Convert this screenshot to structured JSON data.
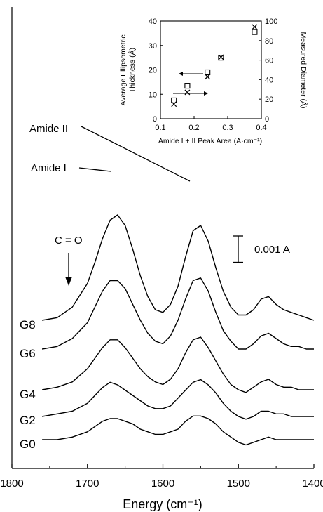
{
  "chart_data": [
    {
      "type": "line",
      "title": "",
      "xlabel": "Energy (cm⁻¹)",
      "ylabel": "",
      "xlim": [
        1800,
        1400
      ],
      "x_reversed": true,
      "x_ticks": [
        "1800",
        "1700",
        "1600",
        "1500",
        "1400"
      ],
      "x_tick_values": [
        1800,
        1700,
        1600,
        1500,
        1400
      ],
      "grid": false,
      "y_units": "absorbance (A)",
      "series": [
        {
          "name": "G0",
          "x": [
            1760,
            1740,
            1720,
            1700,
            1690,
            1680,
            1670,
            1660,
            1650,
            1640,
            1630,
            1620,
            1610,
            1600,
            1590,
            1580,
            1570,
            1560,
            1550,
            1540,
            1530,
            1520,
            1510,
            1500,
            1490,
            1480,
            1470,
            1460,
            1450,
            1440,
            1430,
            1420,
            1410,
            1400
          ],
          "y": [
            0.0,
            0.0,
            0.0001,
            0.0003,
            0.0005,
            0.0007,
            0.0008,
            0.0008,
            0.0007,
            0.0006,
            0.0004,
            0.0003,
            0.0002,
            0.0002,
            0.0003,
            0.0004,
            0.0007,
            0.0009,
            0.0009,
            0.0008,
            0.0006,
            0.0003,
            0.0001,
            -0.0001,
            -0.0002,
            -0.0001,
            0.0,
            0.0001,
            0.0,
            0.0,
            0.0,
            0.0,
            0.0,
            0.0
          ]
        },
        {
          "name": "G2",
          "x": [
            1760,
            1740,
            1720,
            1700,
            1690,
            1680,
            1670,
            1660,
            1650,
            1640,
            1630,
            1620,
            1610,
            1600,
            1590,
            1580,
            1570,
            1560,
            1550,
            1540,
            1530,
            1520,
            1510,
            1500,
            1490,
            1480,
            1470,
            1460,
            1450,
            1440,
            1430,
            1420,
            1410,
            1400
          ],
          "y": [
            0.0,
            0.0001,
            0.0002,
            0.0005,
            0.0008,
            0.0011,
            0.0013,
            0.0012,
            0.001,
            0.0008,
            0.0006,
            0.0004,
            0.0003,
            0.0003,
            0.0004,
            0.0007,
            0.001,
            0.0013,
            0.0014,
            0.0012,
            0.0009,
            0.0005,
            0.0002,
            0.0,
            -0.0001,
            0.0,
            0.0002,
            0.0002,
            0.0001,
            0.0001,
            0.0,
            0.0,
            0.0,
            0.0
          ]
        },
        {
          "name": "G4",
          "x": [
            1760,
            1740,
            1720,
            1700,
            1690,
            1680,
            1670,
            1660,
            1650,
            1640,
            1630,
            1620,
            1610,
            1600,
            1590,
            1580,
            1570,
            1560,
            1550,
            1540,
            1530,
            1520,
            1510,
            1500,
            1490,
            1480,
            1470,
            1460,
            1450,
            1440,
            1430,
            1420,
            1410,
            1400
          ],
          "y": [
            0.0,
            0.0001,
            0.0003,
            0.0008,
            0.0012,
            0.0016,
            0.0019,
            0.0019,
            0.0016,
            0.0012,
            0.0008,
            0.0005,
            0.0003,
            0.0002,
            0.0004,
            0.0008,
            0.0014,
            0.0019,
            0.002,
            0.0016,
            0.0011,
            0.0006,
            0.0002,
            0.0,
            -0.0001,
            0.0001,
            0.0003,
            0.0004,
            0.0002,
            0.0001,
            0.0001,
            0.0,
            0.0,
            0.0
          ]
        },
        {
          "name": "G6",
          "x": [
            1760,
            1740,
            1720,
            1700,
            1690,
            1680,
            1670,
            1660,
            1650,
            1640,
            1630,
            1620,
            1610,
            1600,
            1590,
            1580,
            1570,
            1560,
            1550,
            1540,
            1530,
            1520,
            1510,
            1500,
            1490,
            1480,
            1470,
            1460,
            1450,
            1440,
            1430,
            1420,
            1410,
            1400
          ],
          "y": [
            0.0,
            0.0001,
            0.0004,
            0.001,
            0.0016,
            0.0022,
            0.0026,
            0.0026,
            0.0023,
            0.0017,
            0.0011,
            0.0006,
            0.0003,
            0.0002,
            0.0005,
            0.0011,
            0.0019,
            0.0026,
            0.0027,
            0.0022,
            0.0014,
            0.0007,
            0.0003,
            0.0,
            0.0,
            0.0002,
            0.0005,
            0.0006,
            0.0004,
            0.0002,
            0.0001,
            0.0001,
            0.0,
            0.0
          ]
        },
        {
          "name": "G8",
          "x": [
            1760,
            1740,
            1720,
            1700,
            1690,
            1680,
            1670,
            1660,
            1650,
            1640,
            1630,
            1620,
            1610,
            1600,
            1590,
            1580,
            1570,
            1560,
            1550,
            1540,
            1530,
            1520,
            1510,
            1500,
            1490,
            1480,
            1470,
            1460,
            1450,
            1440,
            1430,
            1420,
            1410,
            1400
          ],
          "y": [
            0.0,
            0.0001,
            0.0005,
            0.0014,
            0.0022,
            0.0031,
            0.0038,
            0.004,
            0.0036,
            0.0027,
            0.0017,
            0.0009,
            0.0004,
            0.0003,
            0.0006,
            0.0013,
            0.0024,
            0.0034,
            0.0036,
            0.003,
            0.002,
            0.0011,
            0.0005,
            0.0002,
            0.0002,
            0.0004,
            0.0008,
            0.0009,
            0.0006,
            0.0004,
            0.0003,
            0.0002,
            0.0001,
            0.0
          ]
        }
      ],
      "annotations": {
        "amide1": "Amide I",
        "amide2": "Amide II",
        "co": "C = O",
        "scalebar_value": 0.001,
        "scalebar_label": "0.001 A"
      }
    },
    {
      "type": "scatter",
      "title": "",
      "xlabel": "Amide I + II Peak Area (A·cm⁻¹)",
      "ylabel": "Average Ellipsometric Thickness (Å)",
      "ylabel_lines": [
        "Average Ellipsometric",
        "Thickness (Å)"
      ],
      "ylabel_right": "Measured Diameter (Å)",
      "xlim": [
        0.1,
        0.4
      ],
      "ylim": [
        0,
        40
      ],
      "ylim_right": [
        0,
        100
      ],
      "x_ticks": [
        "0.1",
        "0.2",
        "0.3",
        "0.4"
      ],
      "x_tick_values": [
        0.1,
        0.2,
        0.3,
        0.4
      ],
      "y_ticks": [
        "0",
        "10",
        "20",
        "30",
        "40"
      ],
      "y_tick_values": [
        0,
        10,
        20,
        30,
        40
      ],
      "y_ticks_right": [
        "0",
        "20",
        "40",
        "60",
        "80",
        "100"
      ],
      "y_tick_values_right": [
        0,
        20,
        40,
        60,
        80,
        100
      ],
      "grid": false,
      "series": [
        {
          "marker": "square",
          "axis": "left",
          "x": [
            0.14,
            0.18,
            0.24,
            0.28,
            0.38
          ],
          "y": [
            7.5,
            13.5,
            19,
            25,
            35.5
          ]
        },
        {
          "marker": "x",
          "axis": "right",
          "x": [
            0.14,
            0.18,
            0.24,
            0.28,
            0.38
          ],
          "y": [
            15,
            27,
            43,
            63,
            94
          ]
        }
      ]
    }
  ]
}
